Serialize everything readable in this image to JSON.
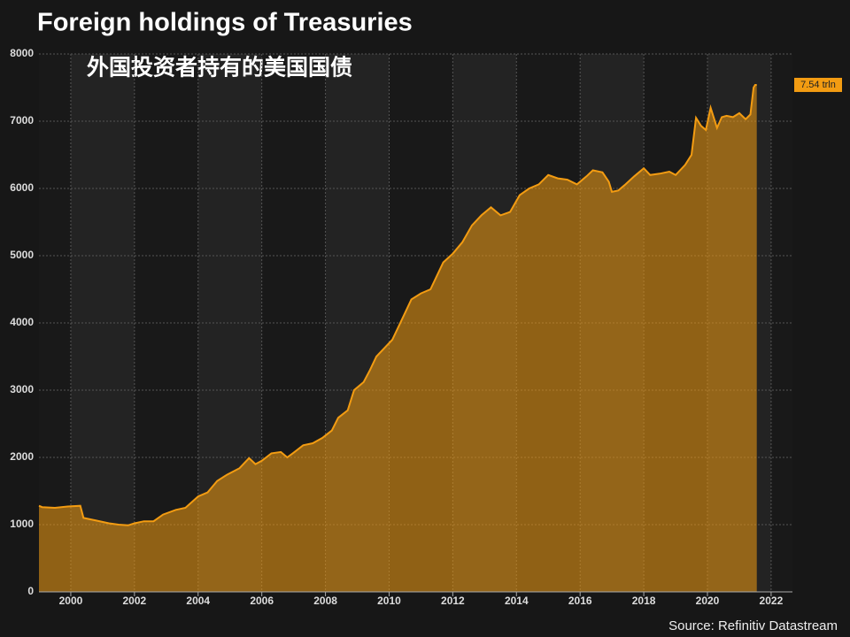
{
  "chart_data": {
    "type": "area",
    "title": "Foreign holdings of Treasuries",
    "subtitle": "外国投资者持有的美国国债",
    "source": "Source: Refinitiv Datastream",
    "annotation": "7.54 trln",
    "color": "#f39c12",
    "x": [
      1999.0,
      1999.1,
      1999.5,
      1999.9,
      2000.3,
      2000.4,
      2000.8,
      2001.2,
      2001.5,
      2001.8,
      2002.0,
      2002.3,
      2002.6,
      2002.9,
      2003.3,
      2003.6,
      2004.0,
      2004.3,
      2004.6,
      2004.9,
      2005.3,
      2005.6,
      2005.8,
      2006.0,
      2006.3,
      2006.6,
      2006.8,
      2007.0,
      2007.3,
      2007.6,
      2007.9,
      2008.2,
      2008.4,
      2008.7,
      2008.9,
      2009.2,
      2009.4,
      2009.6,
      2009.9,
      2010.1,
      2010.3,
      2010.5,
      2010.7,
      2011.0,
      2011.3,
      2011.5,
      2011.7,
      2012.0,
      2012.3,
      2012.6,
      2012.9,
      2013.2,
      2013.5,
      2013.8,
      2014.1,
      2014.4,
      2014.7,
      2015.0,
      2015.3,
      2015.6,
      2015.9,
      2016.2,
      2016.4,
      2016.7,
      2016.9,
      2017.0,
      2017.2,
      2017.4,
      2017.7,
      2018.0,
      2018.2,
      2018.5,
      2018.8,
      2019.0,
      2019.3,
      2019.5,
      2019.64,
      2019.8,
      2019.95,
      2020.1,
      2020.3,
      2020.45,
      2020.6,
      2020.8,
      2021.0,
      2021.2,
      2021.35,
      2021.45,
      2021.5,
      2021.55
    ],
    "values": [
      1280,
      1260,
      1250,
      1270,
      1280,
      1100,
      1060,
      1020,
      1000,
      990,
      1020,
      1050,
      1050,
      1150,
      1220,
      1250,
      1420,
      1480,
      1650,
      1740,
      1840,
      1990,
      1900,
      1950,
      2060,
      2080,
      2000,
      2070,
      2180,
      2210,
      2290,
      2400,
      2590,
      2700,
      3000,
      3120,
      3300,
      3500,
      3650,
      3750,
      3950,
      4150,
      4350,
      4440,
      4500,
      4700,
      4900,
      5030,
      5200,
      5450,
      5600,
      5720,
      5600,
      5650,
      5900,
      6000,
      6060,
      6200,
      6150,
      6130,
      6060,
      6180,
      6270,
      6240,
      6100,
      5950,
      5970,
      6050,
      6180,
      6300,
      6200,
      6220,
      6250,
      6200,
      6350,
      6500,
      7050,
      6930,
      6870,
      7200,
      6900,
      7060,
      7080,
      7060,
      7120,
      7030,
      7100,
      7500,
      7540,
      7540
    ],
    "xlim": [
      1999.0,
      2022.67
    ],
    "xticks": [
      2000,
      2002,
      2004,
      2006,
      2008,
      2010,
      2012,
      2014,
      2016,
      2018,
      2020,
      2022
    ],
    "ylim": [
      0,
      8000
    ],
    "yticks": [
      0,
      1000,
      2000,
      3000,
      4000,
      5000,
      6000,
      7000,
      8000
    ],
    "grid": true
  }
}
